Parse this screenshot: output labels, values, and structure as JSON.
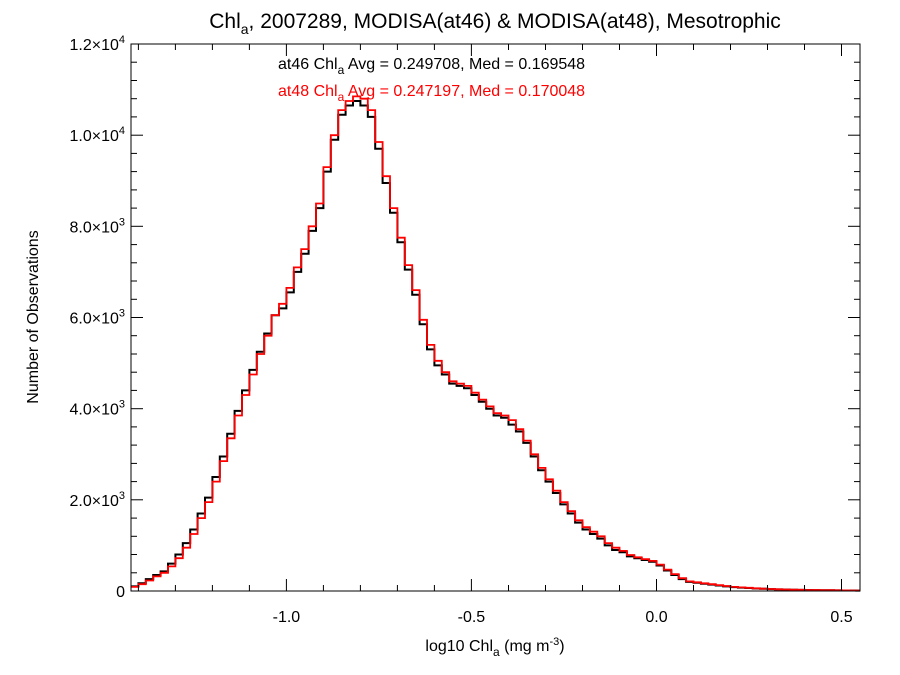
{
  "chart_data": {
    "type": "line",
    "title": {
      "pre": "Chl",
      "sub": "a",
      "post": ", 2007289, MODISA(at46) & MODISA(at48), Mesotrophic"
    },
    "xlabel": {
      "pre": "log10 Chl",
      "sub": "a",
      "mid": " (mg m",
      "sup": "-3",
      "post": ")"
    },
    "ylabel": "Number of Observations",
    "xlim": [
      -1.42,
      0.55
    ],
    "ylim": [
      0,
      12000
    ],
    "x_ticks": [
      {
        "value": -1.0,
        "label": "-1.0"
      },
      {
        "value": -0.5,
        "label": "-0.5"
      },
      {
        "value": 0.0,
        "label": "0.0"
      },
      {
        "value": 0.5,
        "label": "0.5"
      }
    ],
    "y_ticks": [
      {
        "value": 0,
        "mant": "0",
        "exp": ""
      },
      {
        "value": 2000,
        "mant": "2.0×10",
        "exp": "3"
      },
      {
        "value": 4000,
        "mant": "4.0×10",
        "exp": "3"
      },
      {
        "value": 6000,
        "mant": "6.0×10",
        "exp": "3"
      },
      {
        "value": 8000,
        "mant": "8.0×10",
        "exp": "3"
      },
      {
        "value": 10000,
        "mant": "1.0×10",
        "exp": "4"
      },
      {
        "value": 12000,
        "mant": "1.2×10",
        "exp": "4"
      }
    ],
    "annotations": [
      {
        "pre": "at46 Chl",
        "sub": "a",
        "post": " Avg = 0.249708, Med = 0.169548",
        "color": "#000000"
      },
      {
        "pre": "at48 Chl",
        "sub": "a",
        "post": " Avg = 0.247197, Med = 0.170048",
        "color": "#ff0000"
      }
    ],
    "grid": false,
    "series": [
      {
        "color": "#000000",
        "x": [
          -1.42,
          -1.4,
          -1.38,
          -1.36,
          -1.34,
          -1.32,
          -1.3,
          -1.28,
          -1.26,
          -1.24,
          -1.22,
          -1.2,
          -1.18,
          -1.16,
          -1.14,
          -1.12,
          -1.1,
          -1.08,
          -1.06,
          -1.04,
          -1.02,
          -1.0,
          -0.98,
          -0.96,
          -0.94,
          -0.92,
          -0.9,
          -0.88,
          -0.86,
          -0.84,
          -0.82,
          -0.8,
          -0.78,
          -0.76,
          -0.74,
          -0.72,
          -0.7,
          -0.68,
          -0.66,
          -0.64,
          -0.62,
          -0.6,
          -0.58,
          -0.56,
          -0.54,
          -0.52,
          -0.5,
          -0.48,
          -0.46,
          -0.44,
          -0.42,
          -0.4,
          -0.38,
          -0.36,
          -0.34,
          -0.32,
          -0.3,
          -0.28,
          -0.26,
          -0.24,
          -0.22,
          -0.2,
          -0.18,
          -0.16,
          -0.14,
          -0.12,
          -0.1,
          -0.08,
          -0.06,
          -0.04,
          -0.02,
          0.0,
          0.02,
          0.04,
          0.06,
          0.08,
          0.1,
          0.12,
          0.14,
          0.16,
          0.18,
          0.2,
          0.22,
          0.24,
          0.26,
          0.28,
          0.3,
          0.32,
          0.34,
          0.36,
          0.38,
          0.4,
          0.42,
          0.44,
          0.46,
          0.48,
          0.5,
          0.52,
          0.54
        ],
        "y": [
          100,
          170,
          260,
          350,
          430,
          600,
          800,
          1050,
          1350,
          1700,
          2050,
          2500,
          2950,
          3450,
          3950,
          4400,
          4850,
          5250,
          5650,
          6050,
          6200,
          6550,
          7000,
          7400,
          7900,
          8400,
          9200,
          9900,
          10450,
          10650,
          10750,
          10650,
          10400,
          9700,
          8950,
          8300,
          7650,
          7050,
          6500,
          5850,
          5300,
          4950,
          4750,
          4550,
          4500,
          4450,
          4300,
          4150,
          4000,
          3850,
          3800,
          3650,
          3500,
          3250,
          2950,
          2650,
          2400,
          2150,
          1900,
          1700,
          1500,
          1350,
          1250,
          1150,
          1000,
          900,
          850,
          760,
          720,
          680,
          640,
          560,
          450,
          350,
          260,
          200,
          180,
          160,
          140,
          120,
          100,
          85,
          75,
          65,
          55,
          48,
          42,
          36,
          32,
          28,
          25,
          22,
          20,
          18,
          16,
          14,
          12,
          10,
          8
        ]
      },
      {
        "color": "#ff0000",
        "x": [
          -1.42,
          -1.4,
          -1.38,
          -1.36,
          -1.34,
          -1.32,
          -1.3,
          -1.28,
          -1.26,
          -1.24,
          -1.22,
          -1.2,
          -1.18,
          -1.16,
          -1.14,
          -1.12,
          -1.1,
          -1.08,
          -1.06,
          -1.04,
          -1.02,
          -1.0,
          -0.98,
          -0.96,
          -0.94,
          -0.92,
          -0.9,
          -0.88,
          -0.86,
          -0.84,
          -0.82,
          -0.8,
          -0.78,
          -0.76,
          -0.74,
          -0.72,
          -0.7,
          -0.68,
          -0.66,
          -0.64,
          -0.62,
          -0.6,
          -0.58,
          -0.56,
          -0.54,
          -0.52,
          -0.5,
          -0.48,
          -0.46,
          -0.44,
          -0.42,
          -0.4,
          -0.38,
          -0.36,
          -0.34,
          -0.32,
          -0.3,
          -0.28,
          -0.26,
          -0.24,
          -0.22,
          -0.2,
          -0.18,
          -0.16,
          -0.14,
          -0.12,
          -0.1,
          -0.08,
          -0.06,
          -0.04,
          -0.02,
          0.0,
          0.02,
          0.04,
          0.06,
          0.08,
          0.1,
          0.12,
          0.14,
          0.16,
          0.18,
          0.2,
          0.22,
          0.24,
          0.26,
          0.28,
          0.3,
          0.32,
          0.34,
          0.36,
          0.38,
          0.4,
          0.42,
          0.44,
          0.46,
          0.48,
          0.5,
          0.52,
          0.54
        ],
        "y": [
          90,
          150,
          230,
          320,
          400,
          540,
          720,
          950,
          1250,
          1600,
          1950,
          2400,
          2850,
          3350,
          3850,
          4300,
          4750,
          5200,
          5600,
          6050,
          6300,
          6650,
          7100,
          7500,
          8000,
          8500,
          9300,
          10000,
          10550,
          10750,
          10850,
          10800,
          10550,
          9850,
          9100,
          8400,
          7750,
          7150,
          6600,
          5950,
          5400,
          5050,
          4800,
          4600,
          4550,
          4500,
          4350,
          4200,
          4050,
          3900,
          3850,
          3750,
          3550,
          3300,
          3000,
          2700,
          2450,
          2200,
          1950,
          1750,
          1550,
          1400,
          1300,
          1200,
          1050,
          950,
          880,
          790,
          740,
          700,
          660,
          580,
          470,
          370,
          280,
          210,
          190,
          170,
          150,
          130,
          110,
          90,
          80,
          70,
          60,
          50,
          44,
          38,
          34,
          30,
          26,
          23,
          21,
          19,
          17,
          15,
          13,
          11,
          9
        ]
      }
    ]
  }
}
